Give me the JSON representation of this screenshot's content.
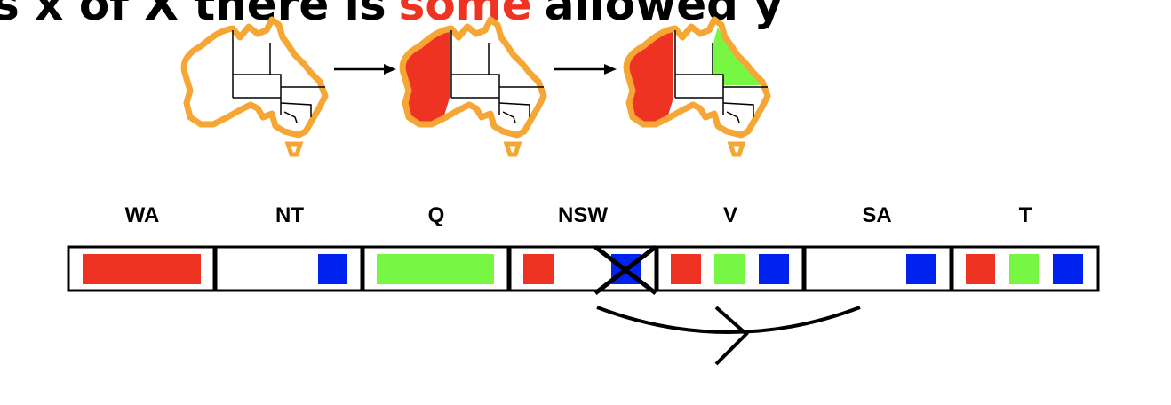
{
  "title": {
    "prefix": "s x of X there is",
    "highlight": "some",
    "suffix": "allowed y",
    "highlight_color": "#ee3322"
  },
  "colors": {
    "red": "#ee3322",
    "green": "#77f744",
    "blue": "#0022ee",
    "map_outline": "#f5a634"
  },
  "maps": [
    {
      "name": "map-uncolored",
      "WA": "none",
      "Q": "none"
    },
    {
      "name": "map-wa-red",
      "WA": "red",
      "Q": "none"
    },
    {
      "name": "map-wa-red-q-green",
      "WA": "red",
      "Q": "green"
    }
  ],
  "variables": [
    {
      "label": "WA",
      "domain": [
        "red-wide"
      ]
    },
    {
      "label": "NT",
      "domain": [
        "blue"
      ]
    },
    {
      "label": "Q",
      "domain": [
        "green-wide"
      ]
    },
    {
      "label": "NSW",
      "domain": [
        "red",
        "blue-crossed"
      ]
    },
    {
      "label": "V",
      "domain": [
        "red",
        "green",
        "blue"
      ]
    },
    {
      "label": "SA",
      "domain": [
        "blue"
      ]
    },
    {
      "label": "T",
      "domain": [
        "red",
        "green",
        "blue"
      ]
    }
  ],
  "arc": {
    "from": "SA",
    "to": "NSW",
    "arrowhead": "V"
  }
}
